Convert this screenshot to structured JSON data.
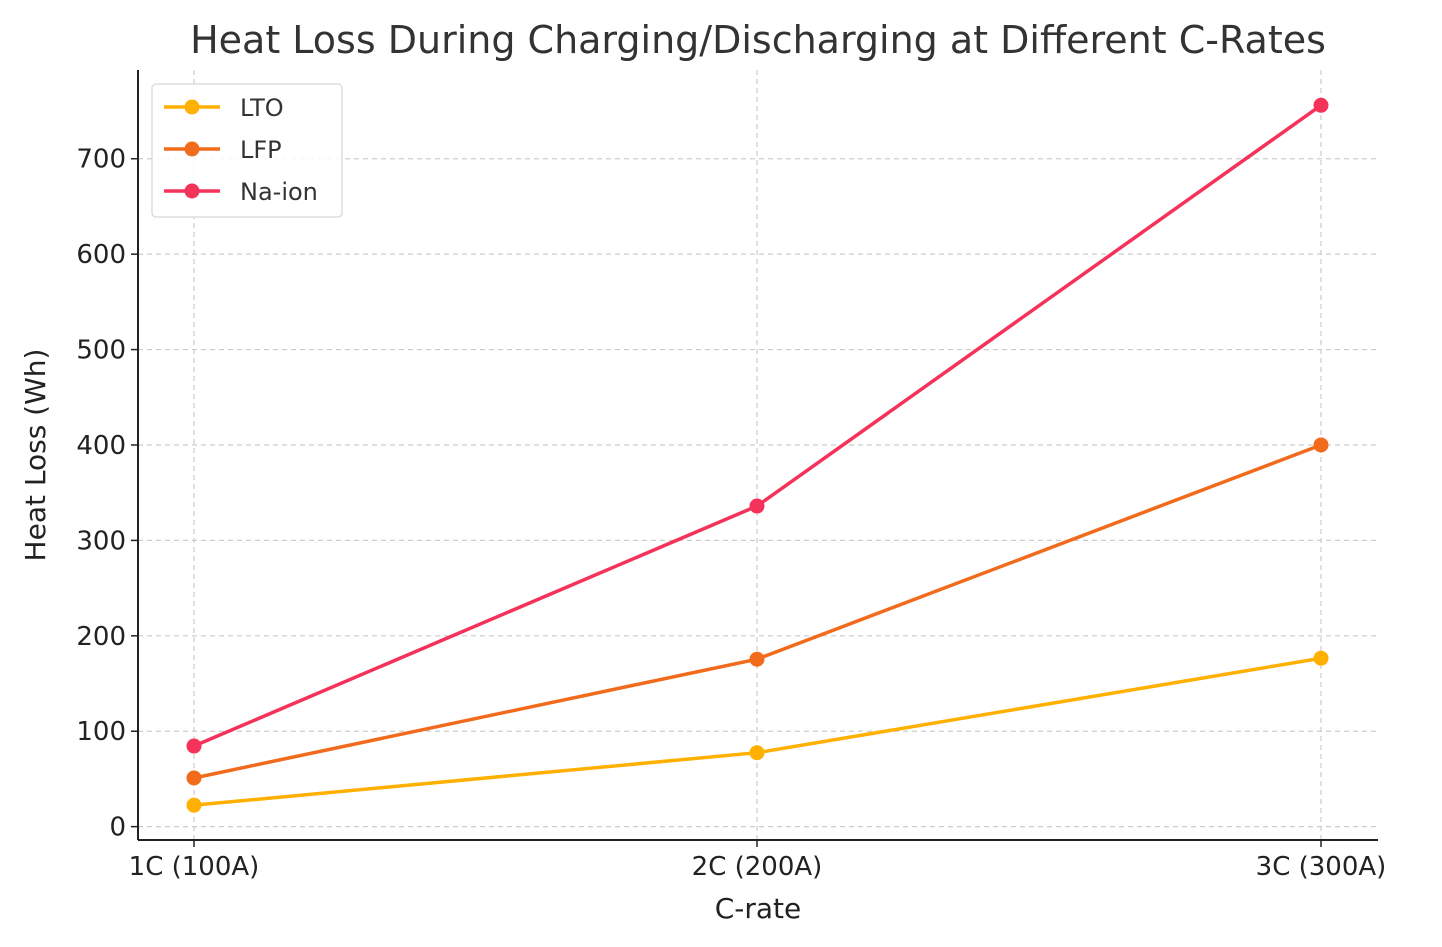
{
  "chart_data": {
    "type": "line",
    "title": "Heat Loss During Charging/Discharging at Different C-Rates",
    "xlabel": "C-rate",
    "ylabel": "Heat Loss (Wh)",
    "categories": [
      "1C (100A)",
      "2C (200A)",
      "3C (300A)"
    ],
    "ylim": [
      -14,
      793
    ],
    "yticks": [
      0,
      100,
      200,
      300,
      400,
      500,
      600,
      700
    ],
    "grid": true,
    "legend_position": "top-left",
    "series": [
      {
        "name": "LTO",
        "color": "#FFB000",
        "values": [
          22.5,
          77.5,
          176.5
        ]
      },
      {
        "name": "LFP",
        "color": "#F26B1D",
        "values": [
          51,
          175.5,
          400
        ]
      },
      {
        "name": "Na-ion",
        "color": "#F5325A",
        "values": [
          84.5,
          336,
          756
        ]
      }
    ]
  }
}
